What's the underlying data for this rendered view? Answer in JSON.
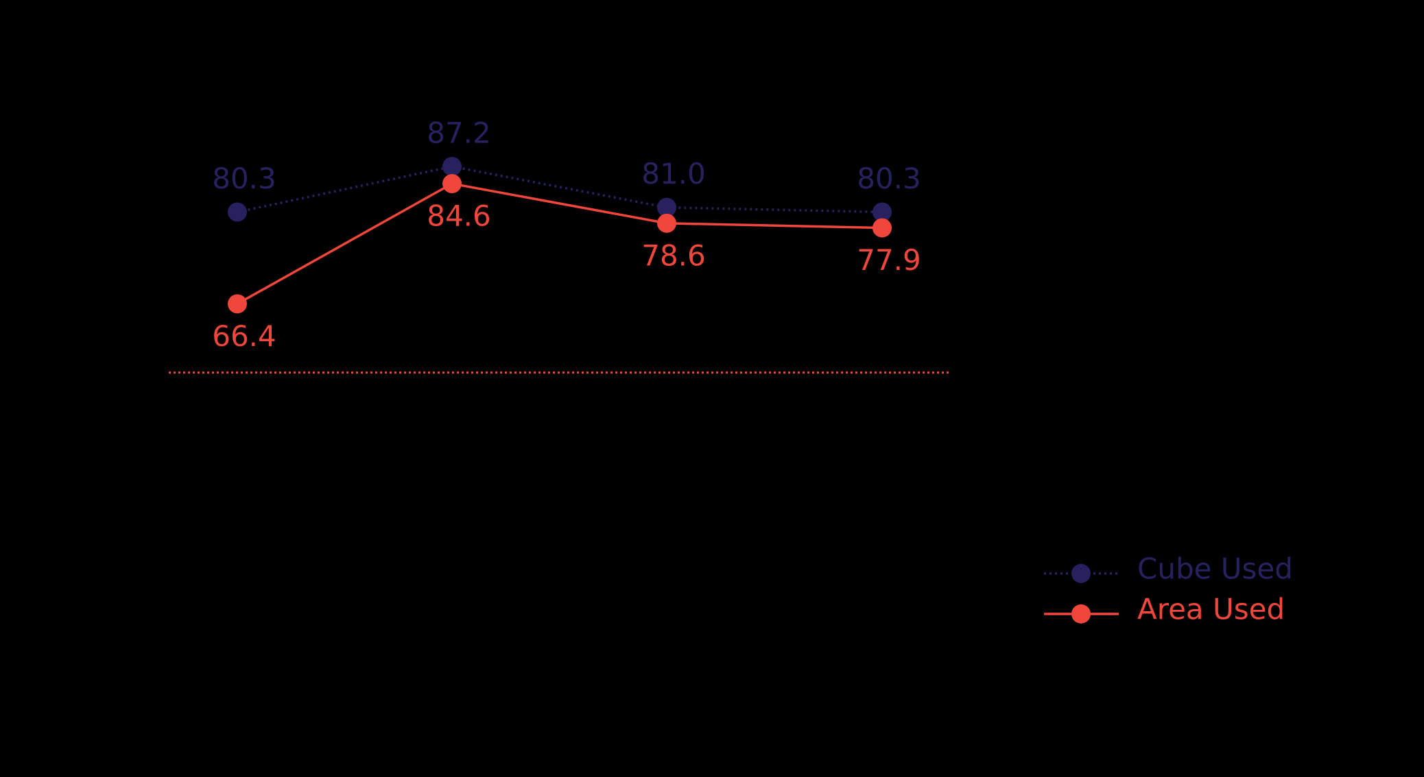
{
  "chart_data": {
    "type": "line",
    "categories": [
      null,
      null,
      null,
      null
    ],
    "series": [
      {
        "name": "Cube Used",
        "color": "#27225f",
        "line_style": "dotted",
        "values": [
          80.3,
          87.2,
          81.0,
          80.3
        ],
        "value_labels": [
          "80.3",
          "87.2",
          "81.0",
          "80.3"
        ],
        "label_position": "above"
      },
      {
        "name": "Area Used",
        "color": "#f0463b",
        "line_style": "solid",
        "values": [
          66.4,
          84.6,
          78.6,
          77.9
        ],
        "label_position": "below"
      }
    ],
    "ylim": [
      56,
      92
    ],
    "baseline_color": "#f0463b",
    "legend": "bottom-right"
  }
}
